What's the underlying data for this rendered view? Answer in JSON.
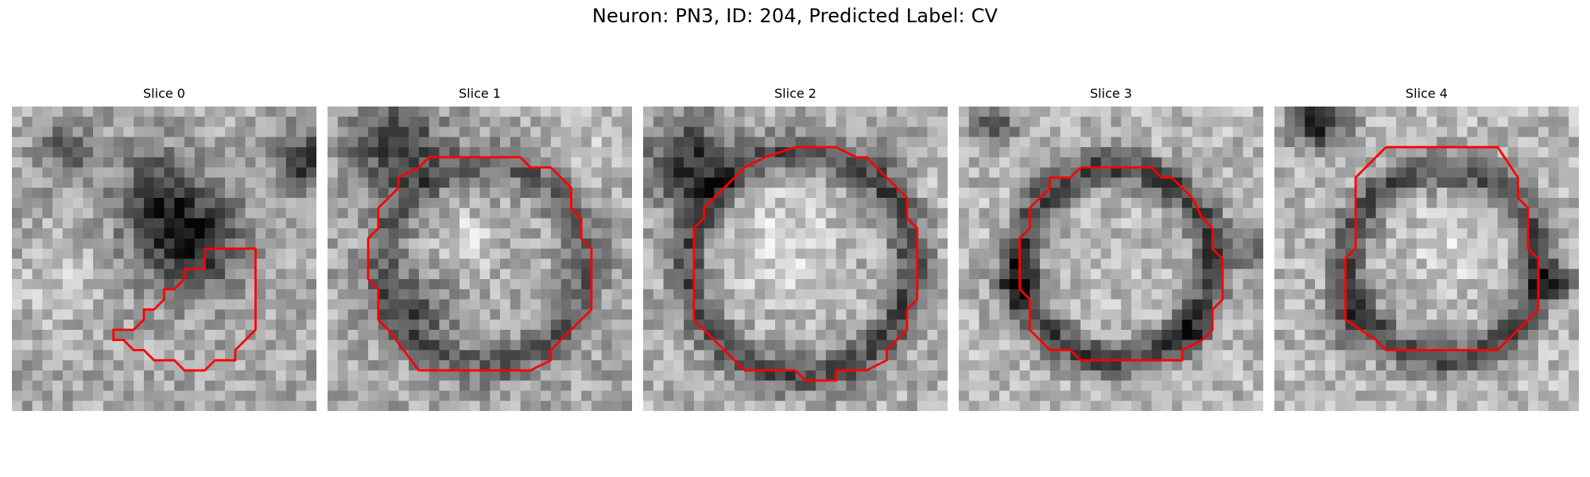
{
  "figure": {
    "title": "Neuron: PN3, ID: 204, Predicted Label: CV",
    "contour_color": "#ff0000",
    "panels": [
      {
        "title": "Slice 0"
      },
      {
        "title": "Slice 1"
      },
      {
        "title": "Slice 2"
      },
      {
        "title": "Slice 3"
      },
      {
        "title": "Slice 4"
      }
    ]
  }
}
